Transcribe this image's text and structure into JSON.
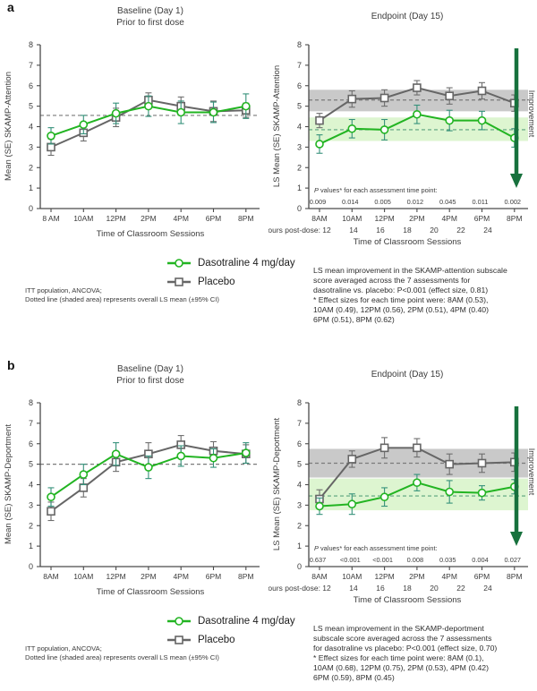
{
  "colors": {
    "dasotraline": "#22b422",
    "dasotraline_err": "#35917a",
    "dasotraline_band": "#ddf5d0",
    "dasotraline_dash": "#5aa27d",
    "placebo": "#666666",
    "placebo_err": "#6e6e6e",
    "placebo_band": "#c9c9c9",
    "placebo_dash": "#7b7b7b",
    "axis": "#4a4a4a",
    "text": "#3c3c3c",
    "improvement_arrow": "#17713d"
  },
  "legend": {
    "dasotraline": "Dasotraline 4 mg/day",
    "placebo": "Placebo"
  },
  "panels": [
    {
      "label": "a",
      "footnote": "ITT population, ANCOVA;\nDotted line (shaded area) represents overall LS mean (±95% CI)",
      "annotation": "LS mean improvement in the SKAMP-attention subscale\nscore averaged across the 7 assessments for\ndasotraline vs. placebo: P<0.001 (effect size, 0.81)\n* Effect sizes for each time point were: 8AM (0.53),\n10AM (0.49), 12PM (0.56), 2PM (0.51), 4PM (0.40)\n6PM (0.51), 8PM (0.62)"
    },
    {
      "label": "b",
      "footnote": "ITT population, ANCOVA;\nDotted line (shaded area) represents overall LS mean (±95% CI)",
      "annotation": "LS mean improvement in the SKAMP-deportment\nsubscale score averaged across the 7 assessments\nfor dasotraline vs placebo: P<0.001 (effect size, 0.70)\n* Effect sizes for each time point were: 8AM (0.1),\n10AM (0.68), 12PM (0.75), 2PM (0.53), 4PM (0.42)\n6PM (0.59), 8PM (0.45)"
    }
  ],
  "chart_data": [
    {
      "panel": "a",
      "position": "baseline",
      "type": "line",
      "title": "Baseline (Day 1)",
      "subtitle": "Prior to first dose",
      "ylabel": "Mean (SE) SKAMP-Attention",
      "xlabel": "Time of Classroom Sessions",
      "ylim": [
        0,
        8
      ],
      "grid": false,
      "categories": [
        "8 AM",
        "10AM",
        "12PM",
        "2PM",
        "4PM",
        "6PM",
        "8PM"
      ],
      "series": [
        {
          "name": "Dasotraline 4 mg/day",
          "marker": "circle",
          "color_key": "dasotraline",
          "values": [
            3.55,
            4.1,
            4.65,
            5.0,
            4.7,
            4.7,
            5.0
          ],
          "se": [
            0.4,
            0.45,
            0.5,
            0.5,
            0.55,
            0.5,
            0.6
          ]
        },
        {
          "name": "Placebo",
          "marker": "square",
          "color_key": "placebo",
          "values": [
            3.0,
            3.7,
            4.45,
            5.3,
            5.0,
            4.75,
            4.8
          ],
          "se": [
            0.4,
            0.4,
            0.45,
            0.35,
            0.45,
            0.5,
            0.35
          ]
        }
      ],
      "reference_lines": [
        {
          "value": 4.55,
          "style": "dashed",
          "color_key": "placebo_dash"
        }
      ]
    },
    {
      "panel": "a",
      "position": "endpoint",
      "type": "line",
      "title": "Endpoint (Day 15)",
      "ylabel": "LS Mean (SE) SKAMP-Attention",
      "xlabel": "Time of Classroom Sessions",
      "ylim": [
        0,
        8
      ],
      "grid": false,
      "categories": [
        "8AM",
        "10AM",
        "12PM",
        "2PM",
        "4PM",
        "6PM",
        "8PM"
      ],
      "hours_post_dose": {
        "label": "hours post-dose:",
        "values": [
          "12",
          "14",
          "16",
          "18",
          "20",
          "22",
          "24"
        ]
      },
      "series": [
        {
          "name": "Dasotraline 4 mg/day",
          "marker": "circle",
          "color_key": "dasotraline",
          "values": [
            3.15,
            3.9,
            3.85,
            4.6,
            4.3,
            4.3,
            3.45
          ],
          "se": [
            0.45,
            0.45,
            0.5,
            0.45,
            0.5,
            0.45,
            0.45
          ],
          "mean_line": 3.85,
          "ci_band": [
            3.3,
            4.45
          ]
        },
        {
          "name": "Placebo",
          "marker": "square",
          "color_key": "placebo",
          "values": [
            4.3,
            5.35,
            5.4,
            5.9,
            5.5,
            5.75,
            5.15
          ],
          "se": [
            0.35,
            0.4,
            0.4,
            0.35,
            0.4,
            0.4,
            0.4
          ],
          "mean_line": 5.3,
          "ci_band": [
            4.75,
            5.8
          ]
        }
      ],
      "p_values": {
        "label": "P values* for each assessment time point:",
        "values": [
          "0.009",
          "0.014",
          "0.005",
          "0.012",
          "0.045",
          "0.011",
          "0.002"
        ]
      },
      "improvement_label": "Improvement"
    },
    {
      "panel": "b",
      "position": "baseline",
      "type": "line",
      "title": "Baseline (Day 1)",
      "subtitle": "Prior to first dose",
      "ylabel": "Mean (SE) SKAMP-Deportment",
      "xlabel": "Time of Classroom Sessions",
      "ylim": [
        0,
        8
      ],
      "grid": false,
      "categories": [
        "8AM",
        "10AM",
        "12PM",
        "2PM",
        "4PM",
        "6PM",
        "8PM"
      ],
      "series": [
        {
          "name": "Dasotraline 4 mg/day",
          "marker": "circle",
          "color_key": "dasotraline",
          "values": [
            3.4,
            4.5,
            5.5,
            4.85,
            5.4,
            5.3,
            5.55
          ],
          "se": [
            0.45,
            0.5,
            0.55,
            0.55,
            0.5,
            0.45,
            0.5
          ]
        },
        {
          "name": "Placebo",
          "marker": "square",
          "color_key": "placebo",
          "values": [
            2.7,
            3.85,
            5.1,
            5.5,
            5.95,
            5.65,
            5.5
          ],
          "se": [
            0.45,
            0.45,
            0.45,
            0.55,
            0.45,
            0.45,
            0.45
          ]
        }
      ],
      "reference_lines": [
        {
          "value": 5.0,
          "style": "dashed",
          "color_key": "placebo_dash"
        }
      ]
    },
    {
      "panel": "b",
      "position": "endpoint",
      "type": "line",
      "title": "Endpoint (Day 15)",
      "ylabel": "LS Mean (SE) SKAMP-Deportment",
      "xlabel": "Time of Classroom Sessions",
      "ylim": [
        0,
        8
      ],
      "grid": false,
      "categories": [
        "8AM",
        "10AM",
        "12PM",
        "2PM",
        "4PM",
        "6PM",
        "8PM"
      ],
      "hours_post_dose": {
        "label": "hours post-dose:",
        "values": [
          "12",
          "14",
          "16",
          "18",
          "20",
          "22",
          "24"
        ]
      },
      "series": [
        {
          "name": "Dasotraline 4 mg/day",
          "marker": "circle",
          "color_key": "dasotraline",
          "values": [
            2.95,
            3.05,
            3.4,
            4.1,
            3.65,
            3.6,
            3.9
          ],
          "se": [
            0.4,
            0.5,
            0.45,
            0.4,
            0.55,
            0.35,
            0.35
          ],
          "mean_line": 3.45,
          "ci_band": [
            2.75,
            4.3
          ]
        },
        {
          "name": "Placebo",
          "marker": "square",
          "color_key": "placebo",
          "values": [
            3.3,
            5.25,
            5.8,
            5.8,
            5.0,
            5.05,
            5.1
          ],
          "se": [
            0.45,
            0.4,
            0.5,
            0.45,
            0.5,
            0.45,
            0.45
          ],
          "mean_line": 5.05,
          "ci_band": [
            4.35,
            5.75
          ]
        }
      ],
      "p_values": {
        "label": "P values* for each assessment time point:",
        "values": [
          "0.637",
          "<0.001",
          "<0.001",
          "0.008",
          "0.035",
          "0.004",
          "0.027"
        ]
      },
      "improvement_label": "Improvement"
    }
  ]
}
